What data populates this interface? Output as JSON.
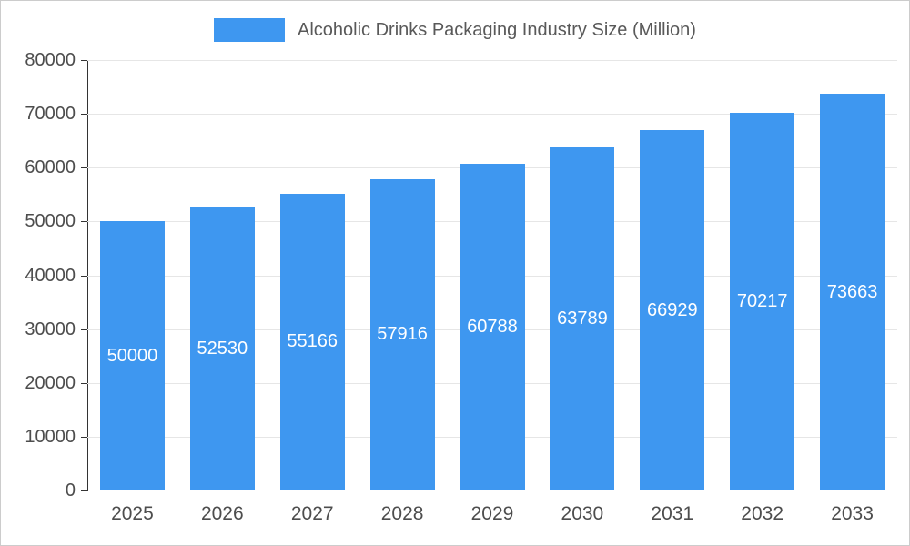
{
  "legend": {
    "title": "Alcoholic Drinks Packaging Industry Size (Million)"
  },
  "chart_data": {
    "type": "bar",
    "title": "Alcoholic Drinks Packaging Industry Size (Million)",
    "categories": [
      "2025",
      "2026",
      "2027",
      "2028",
      "2029",
      "2030",
      "2031",
      "2032",
      "2033"
    ],
    "values": [
      50000,
      52530,
      55166,
      57916,
      60788,
      63789,
      66929,
      70217,
      73663
    ],
    "xlabel": "",
    "ylabel": "",
    "ylim": [
      0,
      80000
    ],
    "ytick_step": 10000,
    "ytick_labels": [
      "0",
      "10000",
      "20000",
      "30000",
      "40000",
      "50000",
      "60000",
      "70000",
      "80000"
    ],
    "grid": true,
    "legend_position": "top",
    "colors": {
      "bar": "#3E97F0",
      "value_label": "#FFFFFF",
      "axis_text": "#4D4D4D",
      "title_text": "#595959",
      "gridline": "#E6E6E6",
      "axis_line": "#333333",
      "baseline": "#CCCCCC"
    }
  }
}
